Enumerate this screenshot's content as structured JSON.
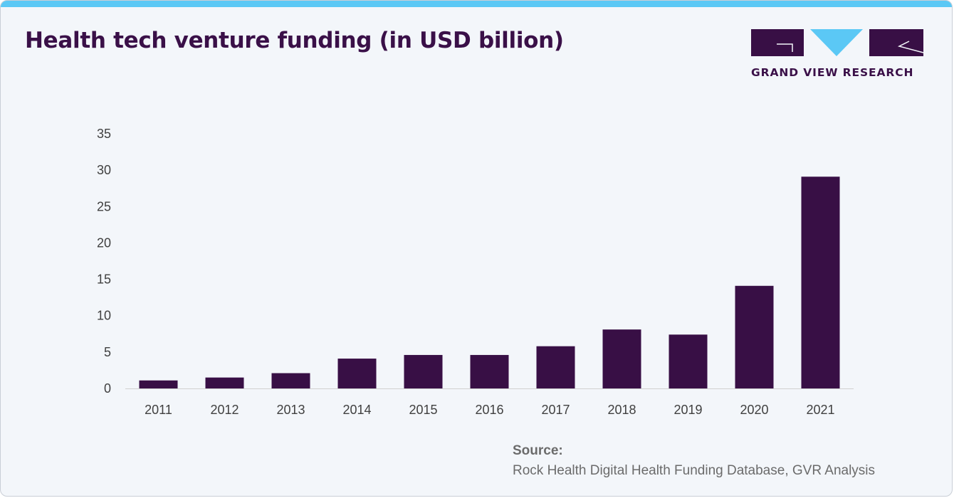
{
  "title": "Health tech venture funding (in USD billion)",
  "logo": {
    "text": "GRAND VIEW RESEARCH"
  },
  "source": {
    "label": "Source:",
    "text": "Rock Health Digital Health Funding Database, GVR Analysis"
  },
  "colors": {
    "bar": "#380f45",
    "title": "#3a1048",
    "accent": "#5bc8f5",
    "background": "#f3f6fa"
  },
  "chart_data": {
    "type": "bar",
    "title": "Health tech venture funding (in USD billion)",
    "xlabel": "",
    "ylabel": "",
    "ylim": [
      0,
      35
    ],
    "yticks": [
      0,
      5,
      10,
      15,
      20,
      25,
      30,
      35
    ],
    "grid": false,
    "categories": [
      "2011",
      "2012",
      "2013",
      "2014",
      "2015",
      "2016",
      "2017",
      "2018",
      "2019",
      "2020",
      "2021"
    ],
    "values": [
      1.1,
      1.5,
      2.1,
      4.1,
      4.6,
      4.6,
      5.8,
      8.1,
      7.4,
      14.1,
      29.1
    ]
  }
}
